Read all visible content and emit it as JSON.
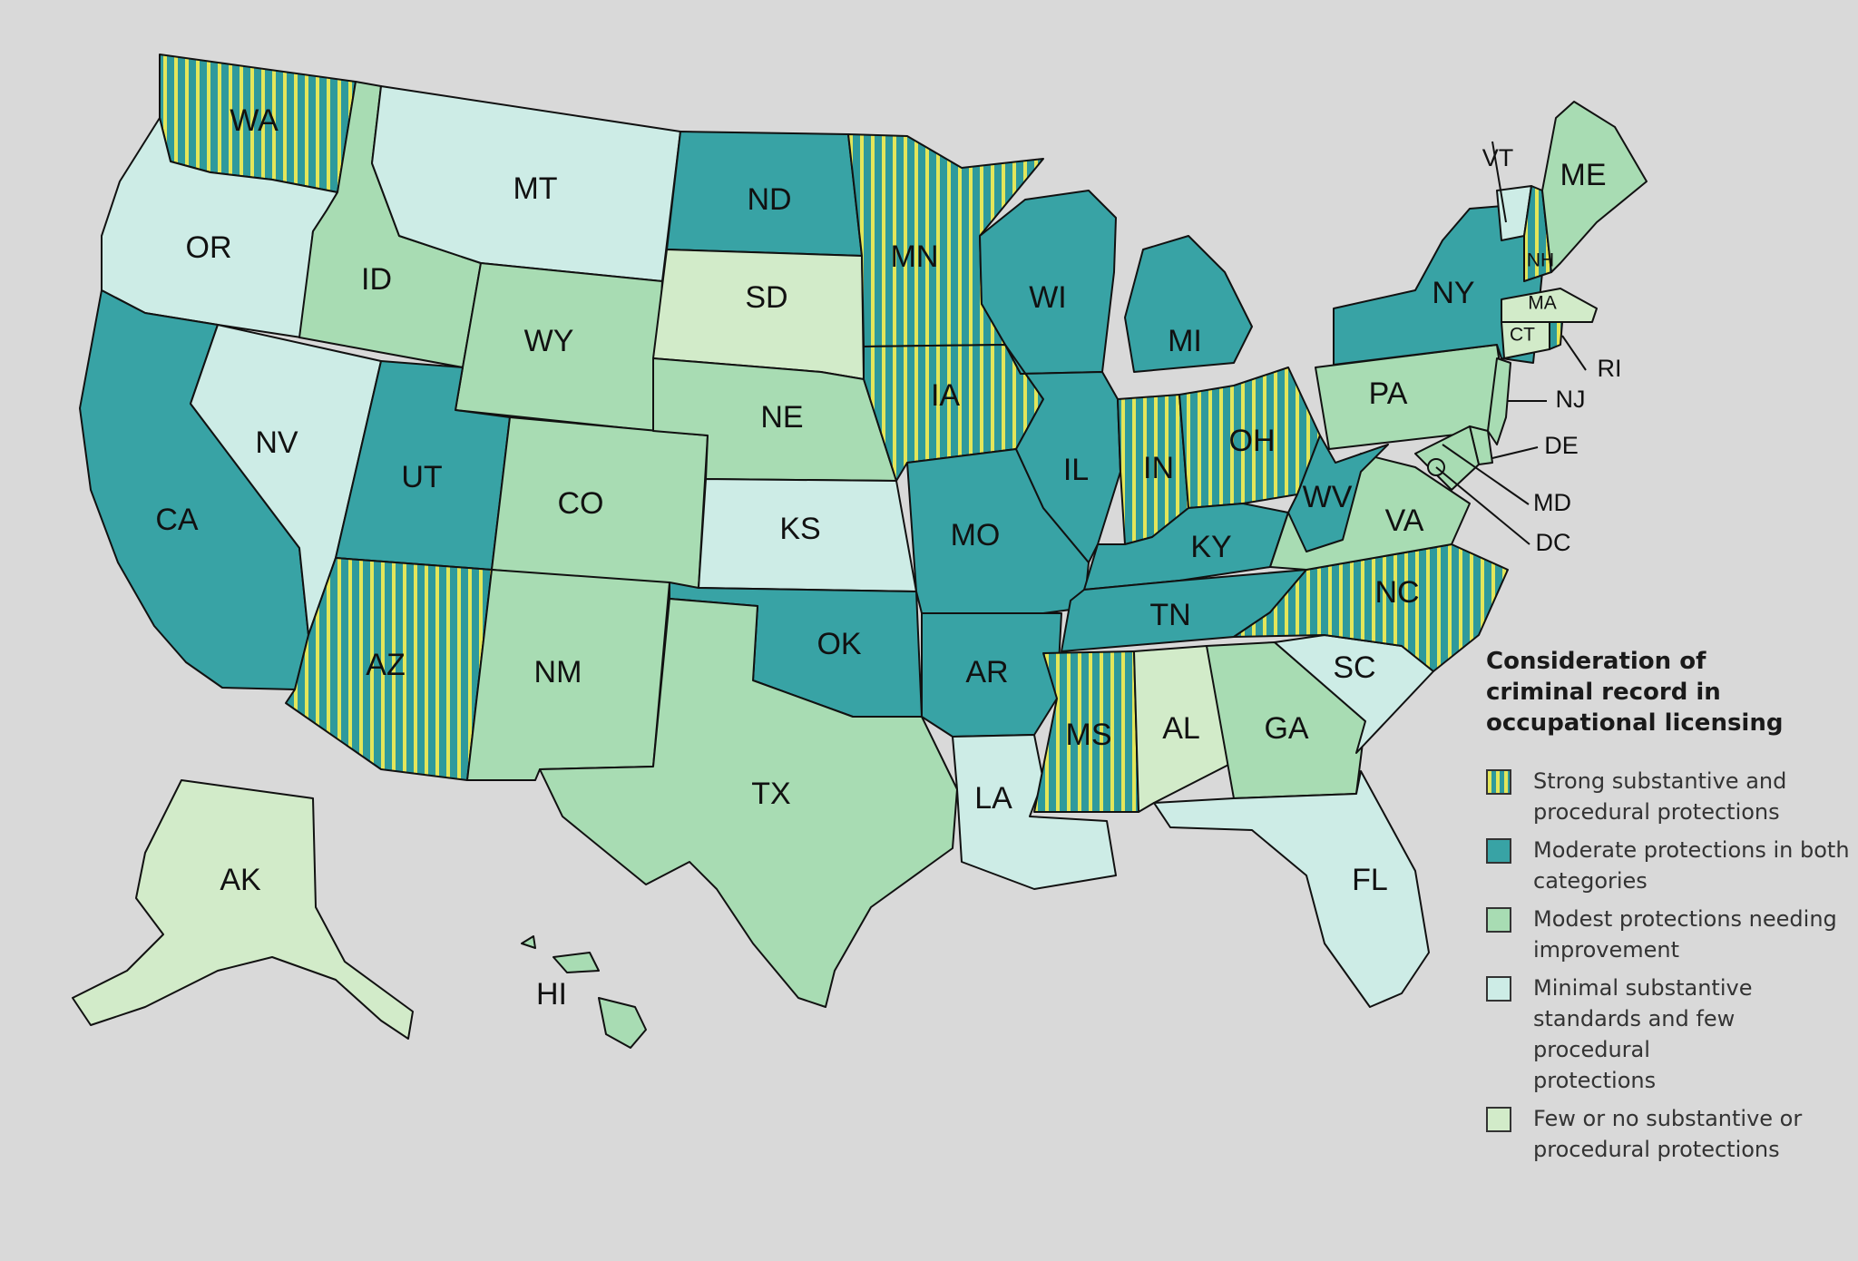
{
  "colors": {
    "strong": "#2e9a9c",
    "strong_stripe": "#e3e65a",
    "moderate": "#38a3a5",
    "modest": "#a8dcb3",
    "minimal": "#cdece6",
    "few": "#d2ebc9",
    "background": "#d9d9d9"
  },
  "legend": {
    "title": "Consideration of criminal record in occupational licensing",
    "items": [
      {
        "category": "strong",
        "label": "Strong substantive and\nprocedural protections"
      },
      {
        "category": "moderate",
        "label": "Moderate protections in both\ncategories"
      },
      {
        "category": "modest",
        "label": "Modest protections needing\nimprovement"
      },
      {
        "category": "minimal",
        "label": "Minimal substantive\nstandards and few procedural\nprotections"
      },
      {
        "category": "few",
        "label": "Few or no substantive or\nprocedural protections"
      }
    ]
  },
  "states": {
    "WA": "strong",
    "OR": "minimal",
    "CA": "moderate",
    "NV": "minimal",
    "ID": "modest",
    "MT": "minimal",
    "WY": "modest",
    "UT": "moderate",
    "AZ": "strong",
    "CO": "modest",
    "NM": "modest",
    "ND": "moderate",
    "SD": "few",
    "NE": "modest",
    "KS": "minimal",
    "OK": "moderate",
    "TX": "modest",
    "MN": "strong",
    "IA": "strong",
    "MO": "moderate",
    "AR": "moderate",
    "LA": "minimal",
    "WI": "moderate",
    "IL": "moderate",
    "MI": "moderate",
    "IN": "strong",
    "OH": "strong",
    "KY": "moderate",
    "TN": "moderate",
    "MS": "strong",
    "AL": "few",
    "GA": "modest",
    "FL": "minimal",
    "SC": "minimal",
    "NC": "strong",
    "VA": "modest",
    "WV": "moderate",
    "PA": "modest",
    "NY": "moderate",
    "VT": "minimal",
    "NH": "strong",
    "ME": "modest",
    "MA": "few",
    "CT": "few",
    "RI": "strong",
    "NJ": "modest",
    "DE": "modest",
    "MD": "modest",
    "DC": "modest",
    "AK": "few",
    "HI": "modest"
  }
}
